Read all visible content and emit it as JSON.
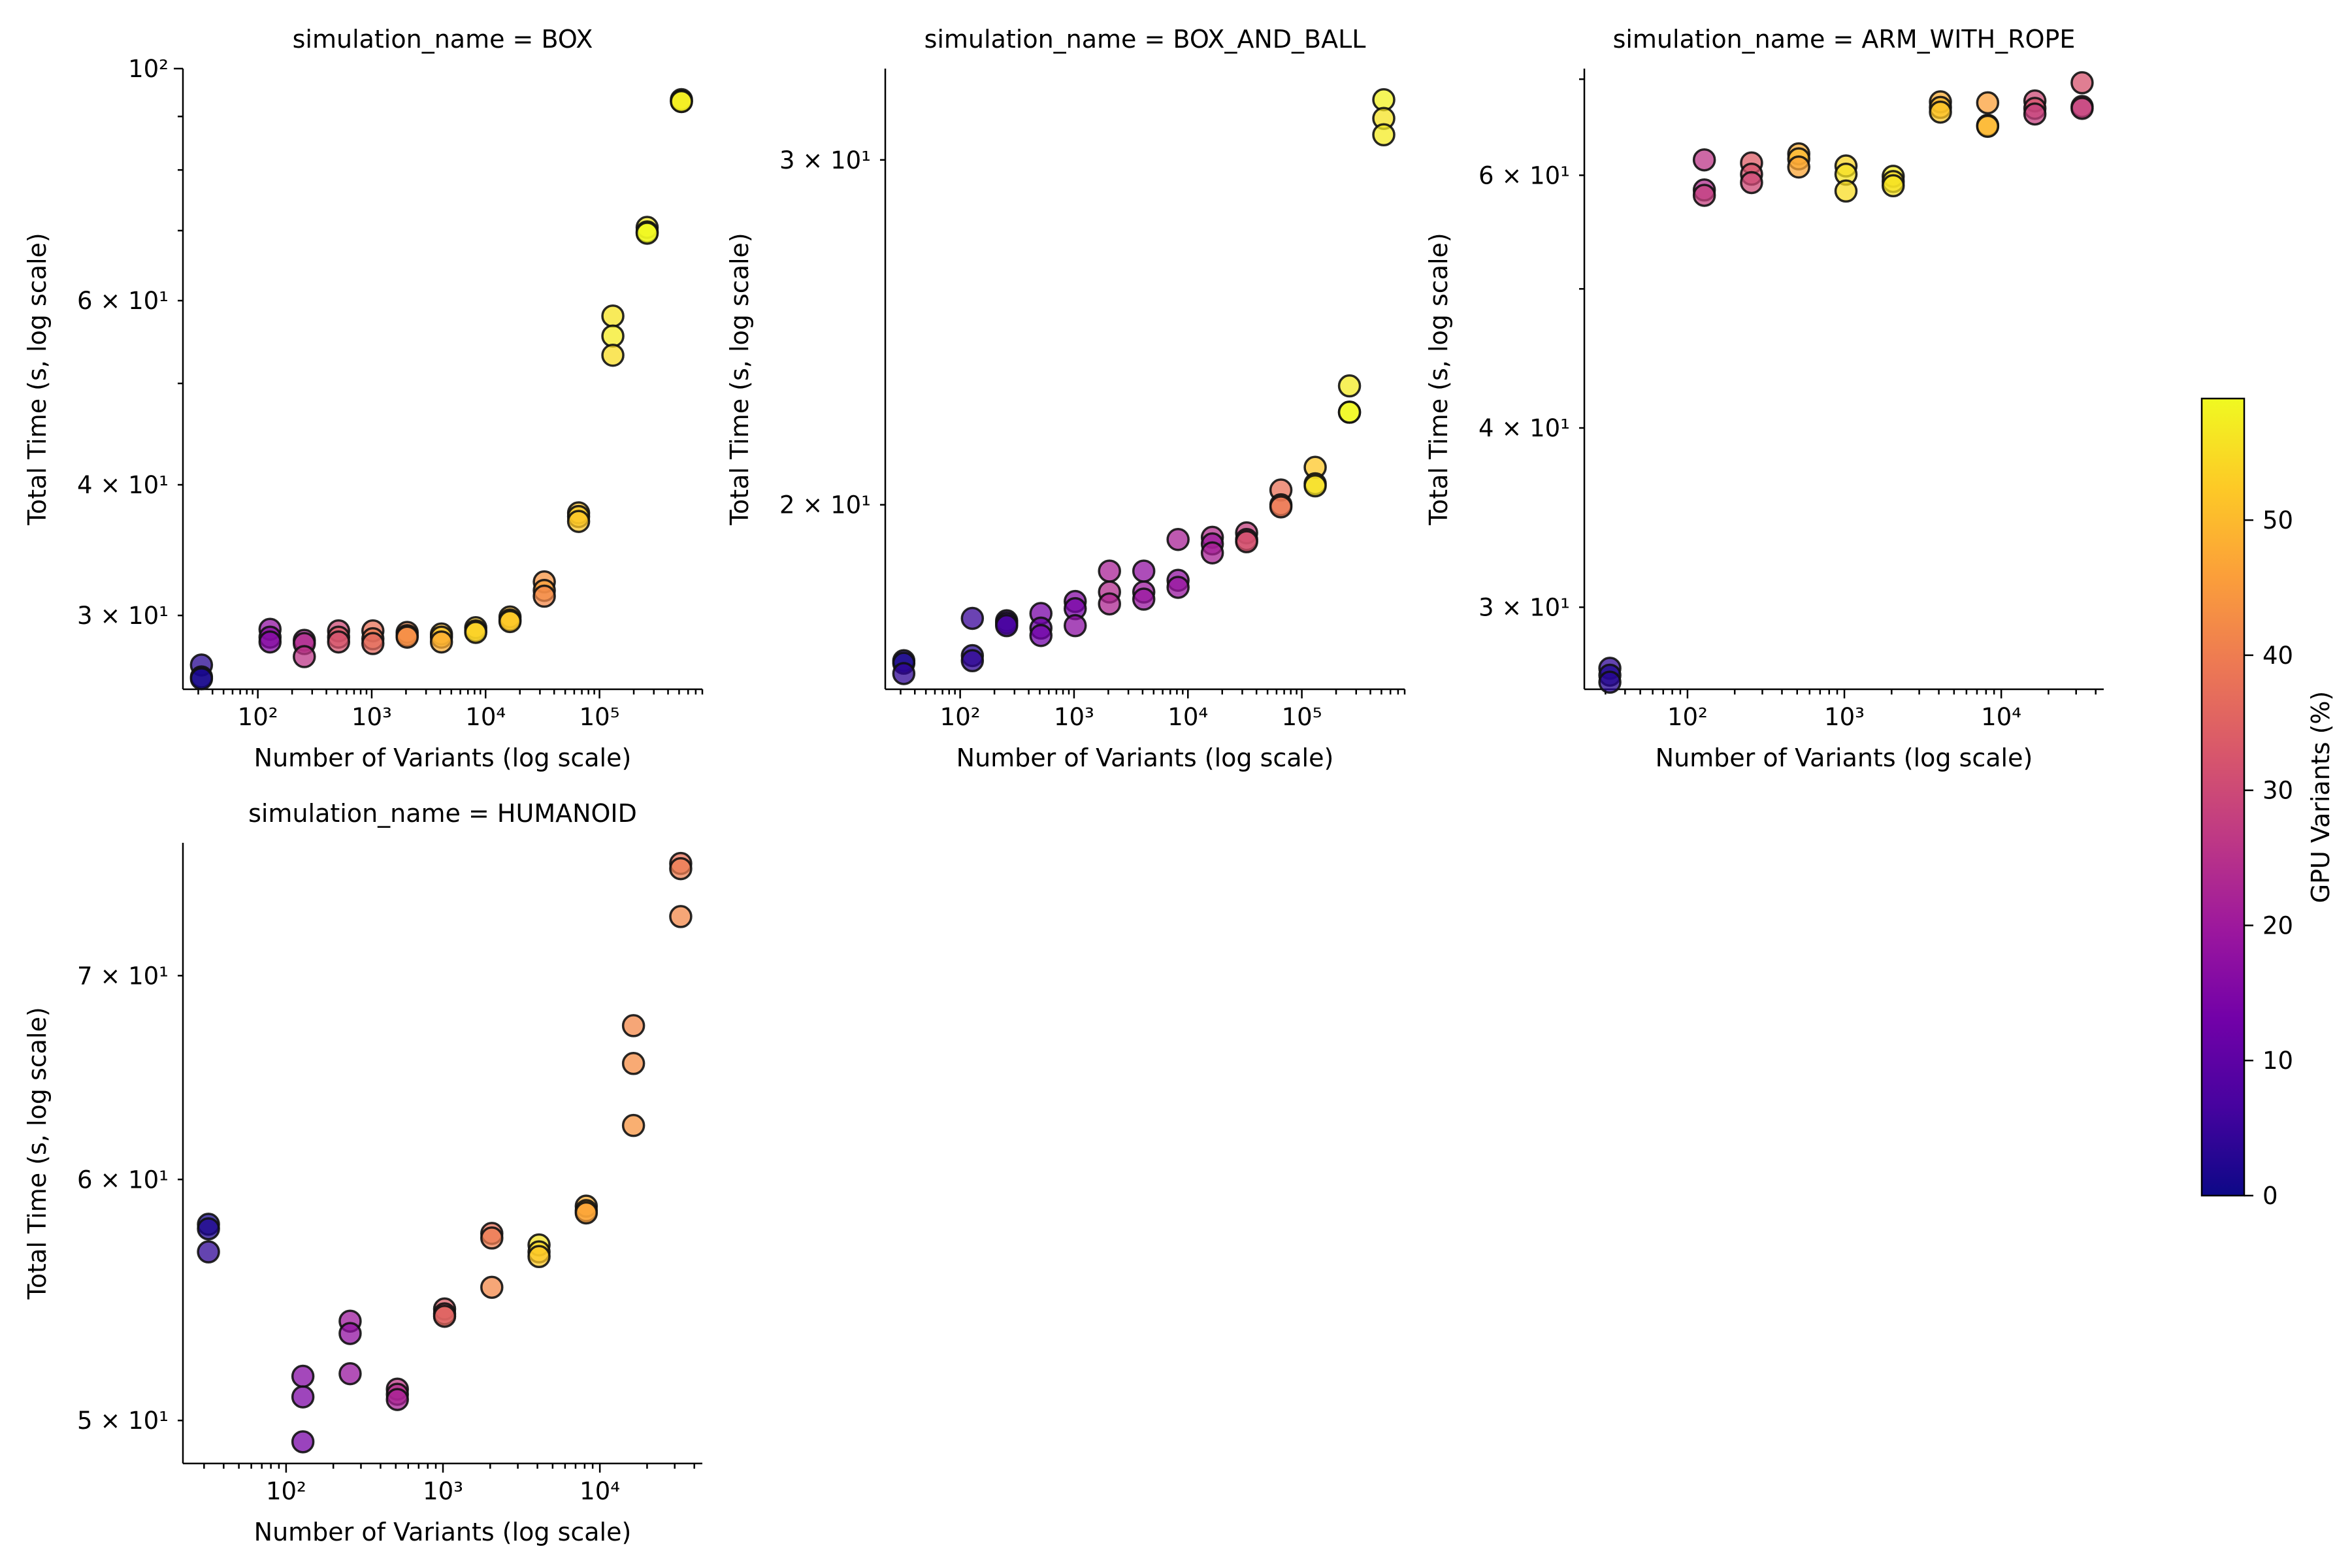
{
  "figure": {
    "colorbar": {
      "label": "GPU Variants (%)",
      "min": 0,
      "max": 59,
      "ticks": [
        0,
        10,
        20,
        30,
        40,
        50
      ],
      "colormap": "plasma"
    }
  },
  "chart_data": [
    {
      "type": "scatter",
      "title": "simulation_name = BOX",
      "xlabel": "Number of Variants (log scale)",
      "ylabel": "Total Time (s, log scale)",
      "xscale": "log",
      "yscale": "log",
      "xlim": [
        22,
        800000
      ],
      "ylim": [
        25.5,
        100
      ],
      "x_major_ticks": [
        {
          "value": 100,
          "label": "10²"
        },
        {
          "value": 1000,
          "label": "10³"
        },
        {
          "value": 10000,
          "label": "10⁴"
        },
        {
          "value": 100000,
          "label": "10⁵"
        }
      ],
      "y_major_ticks": [
        {
          "value": 100,
          "label": "10²"
        }
      ],
      "y_minor_ticks": [
        {
          "value": 30,
          "label": "3 × 10¹"
        },
        {
          "value": 40,
          "label": "4 × 10¹"
        },
        {
          "value": 60,
          "label": "6 × 10¹"
        }
      ],
      "points": [
        {
          "x": 32,
          "y": 26.9,
          "c": 3
        },
        {
          "x": 32,
          "y": 26.2,
          "c": 2
        },
        {
          "x": 32,
          "y": 26.1,
          "c": 1
        },
        {
          "x": 128,
          "y": 29.1,
          "c": 18
        },
        {
          "x": 128,
          "y": 28.6,
          "c": 17
        },
        {
          "x": 128,
          "y": 28.3,
          "c": 16
        },
        {
          "x": 256,
          "y": 28.4,
          "c": 22
        },
        {
          "x": 256,
          "y": 28.2,
          "c": 24
        },
        {
          "x": 256,
          "y": 27.4,
          "c": 26
        },
        {
          "x": 512,
          "y": 29.0,
          "c": 30
        },
        {
          "x": 512,
          "y": 28.6,
          "c": 34
        },
        {
          "x": 512,
          "y": 28.3,
          "c": 32
        },
        {
          "x": 1024,
          "y": 29.0,
          "c": 38
        },
        {
          "x": 1024,
          "y": 28.5,
          "c": 40
        },
        {
          "x": 1024,
          "y": 28.2,
          "c": 36
        },
        {
          "x": 2048,
          "y": 28.9,
          "c": 42
        },
        {
          "x": 2048,
          "y": 28.7,
          "c": 44
        },
        {
          "x": 2048,
          "y": 28.6,
          "c": 43
        },
        {
          "x": 4096,
          "y": 28.8,
          "c": 50
        },
        {
          "x": 4096,
          "y": 28.6,
          "c": 52
        },
        {
          "x": 4096,
          "y": 28.3,
          "c": 48
        },
        {
          "x": 8192,
          "y": 29.2,
          "c": 53
        },
        {
          "x": 8192,
          "y": 29.0,
          "c": 52
        },
        {
          "x": 8192,
          "y": 28.9,
          "c": 54
        },
        {
          "x": 16384,
          "y": 29.9,
          "c": 50
        },
        {
          "x": 16384,
          "y": 29.7,
          "c": 53
        },
        {
          "x": 16384,
          "y": 29.6,
          "c": 52
        },
        {
          "x": 32768,
          "y": 32.3,
          "c": 44
        },
        {
          "x": 32768,
          "y": 31.7,
          "c": 46
        },
        {
          "x": 32768,
          "y": 31.3,
          "c": 42
        },
        {
          "x": 65536,
          "y": 37.6,
          "c": 51
        },
        {
          "x": 65536,
          "y": 37.3,
          "c": 53
        },
        {
          "x": 65536,
          "y": 36.9,
          "c": 52
        },
        {
          "x": 131072,
          "y": 58.0,
          "c": 56
        },
        {
          "x": 131072,
          "y": 55.5,
          "c": 57
        },
        {
          "x": 131072,
          "y": 53.2,
          "c": 55
        },
        {
          "x": 262144,
          "y": 70.5,
          "c": 57
        },
        {
          "x": 262144,
          "y": 69.8,
          "c": 58
        },
        {
          "x": 262144,
          "y": 69.6,
          "c": 59
        },
        {
          "x": 524288,
          "y": 93.4,
          "c": 58
        },
        {
          "x": 524288,
          "y": 93.1,
          "c": 59
        },
        {
          "x": 524288,
          "y": 93.0,
          "c": 57
        }
      ]
    },
    {
      "type": "scatter",
      "title": "simulation_name = BOX_AND_BALL",
      "xlabel": "Number of Variants (log scale)",
      "ylabel": "Total Time (s, log scale)",
      "xscale": "log",
      "yscale": "log",
      "xlim": [
        22,
        800000
      ],
      "ylim": [
        16.1,
        33.4
      ],
      "x_major_ticks": [
        {
          "value": 100,
          "label": "10²"
        },
        {
          "value": 1000,
          "label": "10³"
        },
        {
          "value": 10000,
          "label": "10⁴"
        },
        {
          "value": 100000,
          "label": "10⁵"
        }
      ],
      "y_major_ticks": [],
      "y_minor_ticks": [
        {
          "value": 20,
          "label": "2 × 10¹"
        },
        {
          "value": 30,
          "label": "3 × 10¹"
        }
      ],
      "points": [
        {
          "x": 32,
          "y": 16.65,
          "c": 3
        },
        {
          "x": 32,
          "y": 16.6,
          "c": 1
        },
        {
          "x": 32,
          "y": 16.4,
          "c": 4
        },
        {
          "x": 128,
          "y": 17.5,
          "c": 5
        },
        {
          "x": 128,
          "y": 16.75,
          "c": 3
        },
        {
          "x": 128,
          "y": 16.65,
          "c": 4
        },
        {
          "x": 256,
          "y": 17.45,
          "c": 8
        },
        {
          "x": 256,
          "y": 17.4,
          "c": 6
        },
        {
          "x": 256,
          "y": 17.35,
          "c": 7
        },
        {
          "x": 512,
          "y": 17.6,
          "c": 14
        },
        {
          "x": 512,
          "y": 17.3,
          "c": 12
        },
        {
          "x": 512,
          "y": 17.15,
          "c": 13
        },
        {
          "x": 1024,
          "y": 17.85,
          "c": 16
        },
        {
          "x": 1024,
          "y": 17.7,
          "c": 14
        },
        {
          "x": 1024,
          "y": 17.35,
          "c": 17
        },
        {
          "x": 2048,
          "y": 18.5,
          "c": 22
        },
        {
          "x": 2048,
          "y": 18.05,
          "c": 24
        },
        {
          "x": 2048,
          "y": 17.8,
          "c": 23
        },
        {
          "x": 4096,
          "y": 18.5,
          "c": 18
        },
        {
          "x": 4096,
          "y": 18.05,
          "c": 20
        },
        {
          "x": 4096,
          "y": 17.9,
          "c": 19
        },
        {
          "x": 8192,
          "y": 19.2,
          "c": 22
        },
        {
          "x": 8192,
          "y": 18.3,
          "c": 18
        },
        {
          "x": 8192,
          "y": 18.15,
          "c": 19
        },
        {
          "x": 16384,
          "y": 19.25,
          "c": 24
        },
        {
          "x": 16384,
          "y": 19.1,
          "c": 20
        },
        {
          "x": 16384,
          "y": 18.9,
          "c": 22
        },
        {
          "x": 32768,
          "y": 19.35,
          "c": 28
        },
        {
          "x": 32768,
          "y": 19.2,
          "c": 30
        },
        {
          "x": 32768,
          "y": 19.15,
          "c": 32
        },
        {
          "x": 65536,
          "y": 20.35,
          "c": 38
        },
        {
          "x": 65536,
          "y": 20.0,
          "c": 40
        },
        {
          "x": 65536,
          "y": 19.95,
          "c": 39
        },
        {
          "x": 131072,
          "y": 20.9,
          "c": 52
        },
        {
          "x": 131072,
          "y": 20.5,
          "c": 54
        },
        {
          "x": 131072,
          "y": 20.45,
          "c": 56
        },
        {
          "x": 262144,
          "y": 23.0,
          "c": 57
        },
        {
          "x": 262144,
          "y": 22.3,
          "c": 58
        },
        {
          "x": 262144,
          "y": 22.3,
          "c": 59
        },
        {
          "x": 524288,
          "y": 32.2,
          "c": 58
        },
        {
          "x": 524288,
          "y": 31.5,
          "c": 56
        },
        {
          "x": 524288,
          "y": 30.9,
          "c": 57
        }
      ]
    },
    {
      "type": "scatter",
      "title": "simulation_name = ARM_WITH_ROPE",
      "xlabel": "Number of Variants (log scale)",
      "ylabel": "Total Time (s, log scale)",
      "xscale": "log",
      "yscale": "log",
      "xlim": [
        22,
        45000
      ],
      "ylim": [
        26.3,
        71.2
      ],
      "x_major_ticks": [
        {
          "value": 100,
          "label": "10²"
        },
        {
          "value": 1000,
          "label": "10³"
        },
        {
          "value": 10000,
          "label": "10⁴"
        }
      ],
      "y_major_ticks": [],
      "y_minor_ticks": [
        {
          "value": 30,
          "label": "3 × 10¹"
        },
        {
          "value": 40,
          "label": "4 × 10¹"
        },
        {
          "value": 60,
          "label": "6 × 10¹"
        }
      ],
      "points": [
        {
          "x": 32,
          "y": 27.2,
          "c": 4
        },
        {
          "x": 32,
          "y": 26.9,
          "c": 2
        },
        {
          "x": 32,
          "y": 26.6,
          "c": 3
        },
        {
          "x": 128,
          "y": 61.5,
          "c": 26
        },
        {
          "x": 128,
          "y": 58.6,
          "c": 24
        },
        {
          "x": 128,
          "y": 58.1,
          "c": 28
        },
        {
          "x": 256,
          "y": 61.2,
          "c": 34
        },
        {
          "x": 256,
          "y": 60.1,
          "c": 32
        },
        {
          "x": 256,
          "y": 59.3,
          "c": 30
        },
        {
          "x": 512,
          "y": 62.1,
          "c": 48
        },
        {
          "x": 512,
          "y": 61.6,
          "c": 50
        },
        {
          "x": 512,
          "y": 60.8,
          "c": 47
        },
        {
          "x": 1024,
          "y": 60.9,
          "c": 54
        },
        {
          "x": 1024,
          "y": 60.1,
          "c": 56
        },
        {
          "x": 1024,
          "y": 58.5,
          "c": 55
        },
        {
          "x": 2048,
          "y": 59.9,
          "c": 57
        },
        {
          "x": 2048,
          "y": 59.4,
          "c": 55
        },
        {
          "x": 2048,
          "y": 59.0,
          "c": 56
        },
        {
          "x": 4096,
          "y": 67.5,
          "c": 48
        },
        {
          "x": 4096,
          "y": 66.9,
          "c": 50
        },
        {
          "x": 4096,
          "y": 66.4,
          "c": 52
        },
        {
          "x": 8192,
          "y": 67.4,
          "c": 46
        },
        {
          "x": 8192,
          "y": 65.0,
          "c": 48
        },
        {
          "x": 8192,
          "y": 64.9,
          "c": 50
        },
        {
          "x": 16384,
          "y": 67.6,
          "c": 30
        },
        {
          "x": 16384,
          "y": 66.8,
          "c": 32
        },
        {
          "x": 16384,
          "y": 66.2,
          "c": 28
        },
        {
          "x": 32768,
          "y": 69.6,
          "c": 32
        },
        {
          "x": 32768,
          "y": 67.0,
          "c": 30
        },
        {
          "x": 32768,
          "y": 66.8,
          "c": 28
        }
      ]
    },
    {
      "type": "scatter",
      "title": "simulation_name = HUMANOID",
      "xlabel": "Number of Variants (log scale)",
      "ylabel": "Total Time (s, log scale)",
      "xscale": "log",
      "yscale": "log",
      "xlim": [
        22,
        45000
      ],
      "ylim": [
        48.4,
        77.4
      ],
      "x_major_ticks": [
        {
          "value": 100,
          "label": "10²"
        },
        {
          "value": 1000,
          "label": "10³"
        },
        {
          "value": 10000,
          "label": "10⁴"
        }
      ],
      "y_major_ticks": [],
      "y_minor_ticks": [
        {
          "value": 50,
          "label": "5 × 10¹"
        },
        {
          "value": 60,
          "label": "6 × 10¹"
        },
        {
          "value": 70,
          "label": "7 × 10¹"
        }
      ],
      "points": [
        {
          "x": 32,
          "y": 58.0,
          "c": 1
        },
        {
          "x": 32,
          "y": 57.8,
          "c": 2
        },
        {
          "x": 32,
          "y": 56.8,
          "c": 4
        },
        {
          "x": 128,
          "y": 51.7,
          "c": 16
        },
        {
          "x": 128,
          "y": 50.9,
          "c": 15
        },
        {
          "x": 128,
          "y": 49.2,
          "c": 14
        },
        {
          "x": 256,
          "y": 53.9,
          "c": 20
        },
        {
          "x": 256,
          "y": 53.4,
          "c": 18
        },
        {
          "x": 256,
          "y": 51.8,
          "c": 19
        },
        {
          "x": 512,
          "y": 51.2,
          "c": 26
        },
        {
          "x": 512,
          "y": 51.0,
          "c": 24
        },
        {
          "x": 512,
          "y": 50.8,
          "c": 22
        },
        {
          "x": 1024,
          "y": 54.4,
          "c": 34
        },
        {
          "x": 1024,
          "y": 54.2,
          "c": 32
        },
        {
          "x": 1024,
          "y": 54.1,
          "c": 36
        },
        {
          "x": 2048,
          "y": 57.6,
          "c": 38
        },
        {
          "x": 2048,
          "y": 57.4,
          "c": 40
        },
        {
          "x": 2048,
          "y": 55.3,
          "c": 42
        },
        {
          "x": 4096,
          "y": 57.1,
          "c": 56
        },
        {
          "x": 4096,
          "y": 56.8,
          "c": 54
        },
        {
          "x": 4096,
          "y": 56.6,
          "c": 52
        },
        {
          "x": 8192,
          "y": 58.8,
          "c": 48
        },
        {
          "x": 8192,
          "y": 58.6,
          "c": 50
        },
        {
          "x": 8192,
          "y": 58.5,
          "c": 46
        },
        {
          "x": 16384,
          "y": 67.4,
          "c": 42
        },
        {
          "x": 16384,
          "y": 65.5,
          "c": 43
        },
        {
          "x": 16384,
          "y": 62.5,
          "c": 44
        },
        {
          "x": 32768,
          "y": 76.2,
          "c": 38
        },
        {
          "x": 32768,
          "y": 75.9,
          "c": 40
        },
        {
          "x": 32768,
          "y": 73.2,
          "c": 42
        }
      ]
    }
  ]
}
